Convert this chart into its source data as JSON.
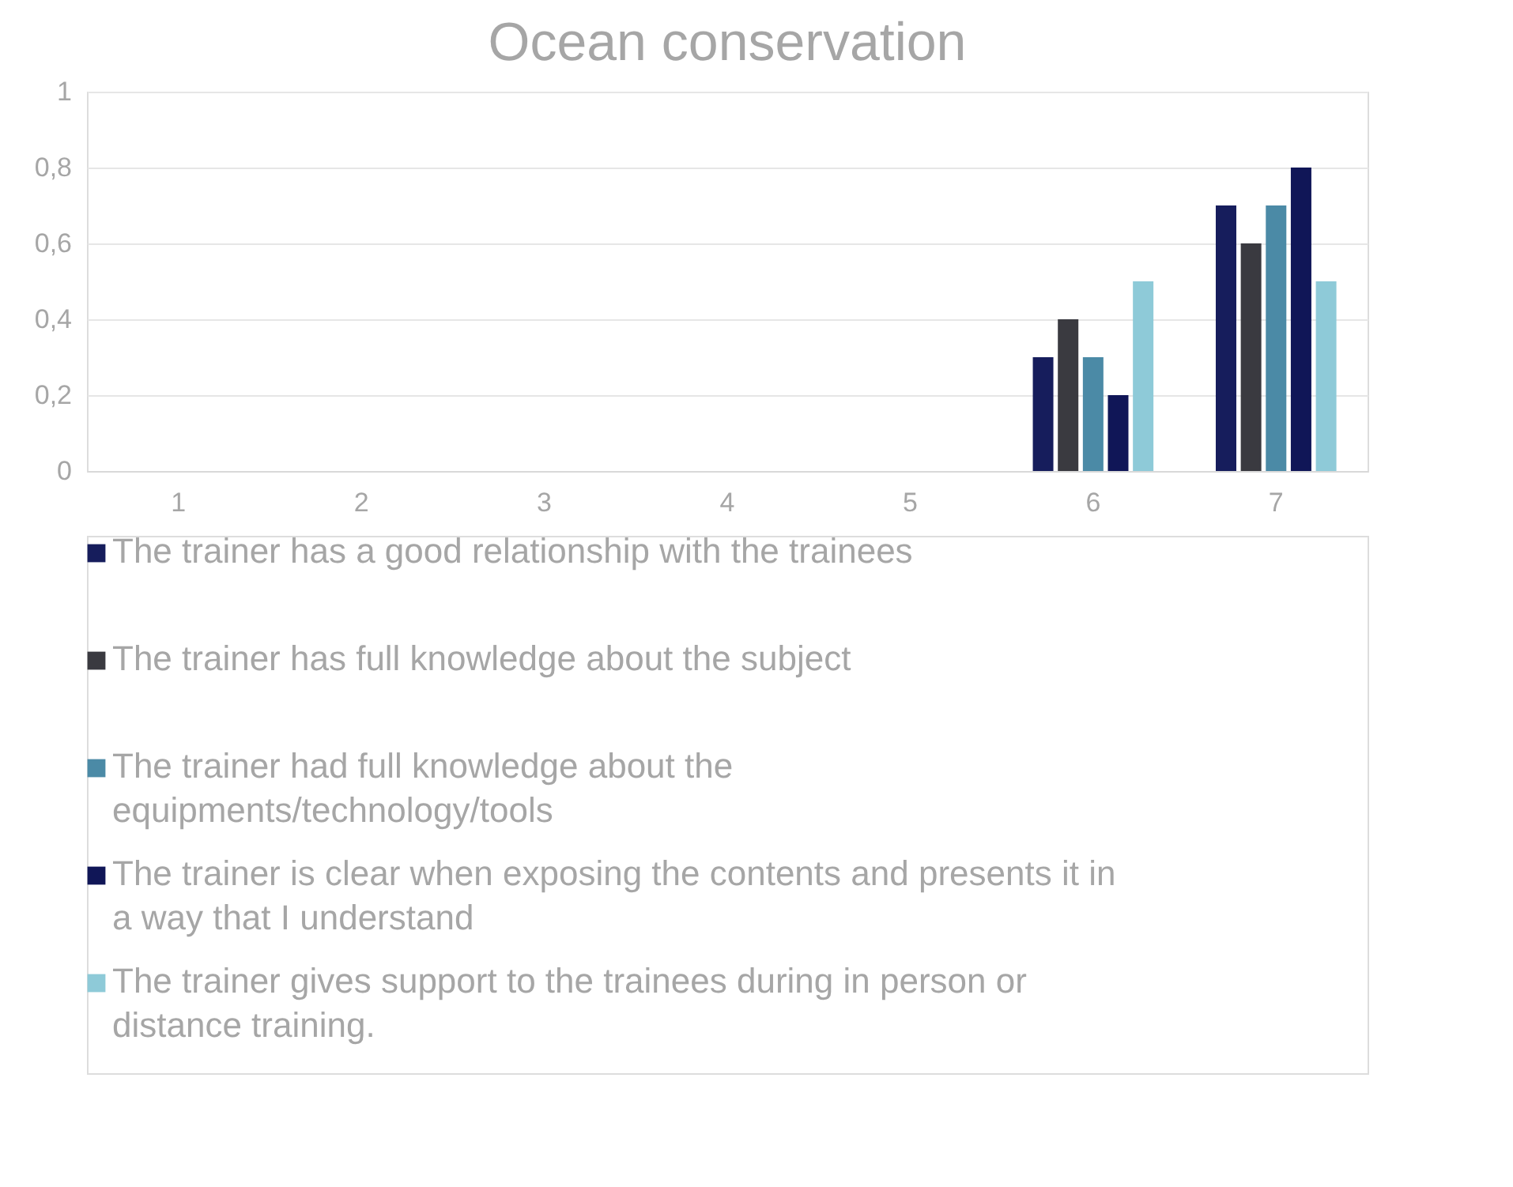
{
  "chart_data": {
    "type": "bar",
    "title": "Ocean conservation",
    "categories": [
      "1",
      "2",
      "3",
      "4",
      "5",
      "6",
      "7"
    ],
    "series": [
      {
        "name": "The trainer has a good relationship with the trainees",
        "color": "#161d5c",
        "values": [
          0,
          0,
          0,
          0,
          0,
          0.3,
          0.7
        ]
      },
      {
        "name": "The trainer has full knowledge about the subject",
        "color": "#3a3a40",
        "values": [
          0,
          0,
          0,
          0,
          0,
          0.4,
          0.6
        ]
      },
      {
        "name": "The trainer had full knowledge about the equipments/technology/tools",
        "color": "#4b8aa6",
        "values": [
          0,
          0,
          0,
          0,
          0,
          0.3,
          0.7
        ]
      },
      {
        "name": "The trainer is clear when exposing the contents and presents it in a way that I understand",
        "color": "#101657",
        "values": [
          0,
          0,
          0,
          0,
          0,
          0.2,
          0.8
        ]
      },
      {
        "name": "The trainer gives support to the trainees during in person or distance training.",
        "color": "#8ecad8",
        "values": [
          0,
          0,
          0,
          0,
          0,
          0.5,
          0.5
        ]
      }
    ],
    "ylim": [
      0,
      1
    ],
    "yticks": [
      0,
      {
        "value": 0.2,
        "label": "0,2"
      },
      {
        "value": 0.4,
        "label": "0,4"
      },
      {
        "value": 0.6,
        "label": "0,6"
      },
      {
        "value": 0.8,
        "label": "0,8"
      },
      1
    ],
    "grid": "y",
    "legend": "bottom"
  }
}
